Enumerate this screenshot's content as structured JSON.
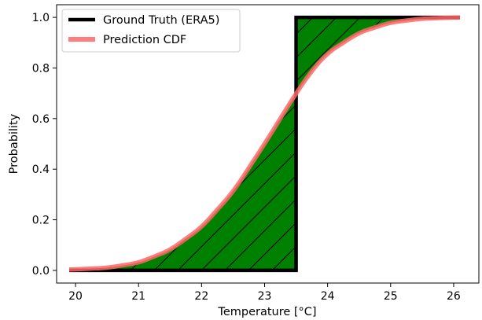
{
  "chart_data": {
    "type": "line",
    "title": "",
    "xlabel": "Temperature [°C]",
    "ylabel": "Probability",
    "xlim": [
      19.7,
      26.4
    ],
    "ylim": [
      -0.05,
      1.05
    ],
    "xticks": [
      "20",
      "21",
      "22",
      "23",
      "24",
      "25",
      "26"
    ],
    "xtick_values": [
      20,
      21,
      22,
      23,
      24,
      25,
      26
    ],
    "yticks": [
      "0.0",
      "0.2",
      "0.4",
      "0.6",
      "0.8",
      "1.0"
    ],
    "ytick_values": [
      0.0,
      0.2,
      0.4,
      0.6,
      0.8,
      1.0
    ],
    "grid": false,
    "legend_position": "top-left",
    "fill_between_series": {
      "color": "#008000",
      "hatch": "diagonal",
      "hatch_color": "#000000"
    },
    "series": [
      {
        "name": "Ground Truth (ERA5)",
        "kind": "step",
        "color": "#000000",
        "x": [
          19.9,
          23.5,
          23.5,
          26.1
        ],
        "y": [
          0.0,
          0.0,
          1.0,
          1.0
        ]
      },
      {
        "name": "Prediction CDF",
        "kind": "cdf",
        "color": "#ff6666",
        "x": [
          19.9,
          20.5,
          21.0,
          21.5,
          22.0,
          22.5,
          23.0,
          23.25,
          23.5,
          23.75,
          24.0,
          24.5,
          25.0,
          25.5,
          26.1
        ],
        "y": [
          0.003,
          0.01,
          0.03,
          0.08,
          0.17,
          0.31,
          0.5,
          0.6,
          0.7,
          0.79,
          0.86,
          0.94,
          0.98,
          0.995,
          1.0
        ]
      }
    ]
  }
}
